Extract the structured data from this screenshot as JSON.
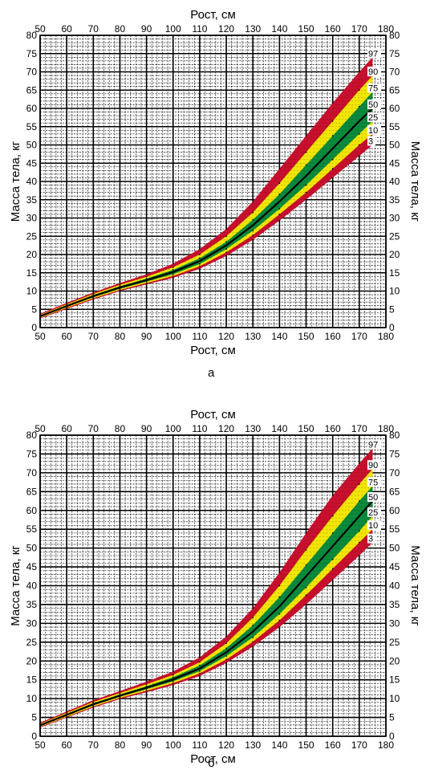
{
  "colors": {
    "outer": "#c8102e",
    "mid": "#f2e600",
    "inner": "#0a8a3c",
    "median": "#000000",
    "grid": "#000000"
  },
  "chart_data": [
    {
      "type": "area",
      "panel_label": "а",
      "xlabel": "Рост, см",
      "ylabel": "Масса тела, кг",
      "xlim": [
        50,
        180
      ],
      "ylim": [
        0,
        80
      ],
      "xticks": [
        50,
        60,
        70,
        80,
        90,
        100,
        110,
        120,
        130,
        140,
        150,
        160,
        170,
        180
      ],
      "yticks": [
        0,
        5,
        10,
        15,
        20,
        25,
        30,
        35,
        40,
        45,
        50,
        55,
        60,
        65,
        70,
        75,
        80
      ],
      "percentile_labels": [
        "97",
        "90",
        "75",
        "50",
        "25",
        "10",
        "3"
      ],
      "x": [
        50,
        60,
        70,
        80,
        90,
        100,
        110,
        120,
        130,
        140,
        150,
        160,
        170,
        175
      ],
      "series": [
        {
          "name": "97",
          "values": [
            3.8,
            6.8,
            9.6,
            12.2,
            14.6,
            17.5,
            21.5,
            27.0,
            34.5,
            43.5,
            52.5,
            61.5,
            70.0,
            74.0
          ]
        },
        {
          "name": "90",
          "values": [
            3.5,
            6.4,
            9.2,
            11.7,
            13.9,
            16.5,
            20.0,
            25.0,
            31.5,
            39.5,
            48.0,
            56.5,
            65.0,
            69.0
          ]
        },
        {
          "name": "75",
          "values": [
            3.3,
            6.1,
            8.9,
            11.3,
            13.4,
            15.8,
            19.0,
            23.5,
            29.5,
            36.5,
            44.5,
            52.5,
            60.5,
            64.5
          ]
        },
        {
          "name": "50",
          "values": [
            3.1,
            5.9,
            8.6,
            11.0,
            13.0,
            15.2,
            18.2,
            22.5,
            28.0,
            34.5,
            41.5,
            49.0,
            56.5,
            60.0
          ]
        },
        {
          "name": "25",
          "values": [
            2.9,
            5.7,
            8.3,
            10.6,
            12.6,
            14.6,
            17.4,
            21.5,
            26.5,
            32.5,
            39.0,
            46.0,
            53.0,
            56.5
          ]
        },
        {
          "name": "10",
          "values": [
            2.7,
            5.4,
            8.0,
            10.3,
            12.2,
            14.1,
            16.8,
            20.6,
            25.3,
            31.0,
            37.0,
            43.5,
            50.0,
            53.0
          ]
        },
        {
          "name": "3",
          "values": [
            2.5,
            5.1,
            7.7,
            10.0,
            11.8,
            13.6,
            16.1,
            19.6,
            24.0,
            29.3,
            35.0,
            41.0,
            47.0,
            50.0
          ]
        }
      ]
    },
    {
      "type": "area",
      "panel_label": "б",
      "xlabel": "Рост, см",
      "ylabel": "Масса тела, кг",
      "xlim": [
        50,
        180
      ],
      "ylim": [
        0,
        80
      ],
      "xticks": [
        50,
        60,
        70,
        80,
        90,
        100,
        110,
        120,
        130,
        140,
        150,
        160,
        170,
        180
      ],
      "yticks": [
        0,
        5,
        10,
        15,
        20,
        25,
        30,
        35,
        40,
        45,
        50,
        55,
        60,
        65,
        70,
        75,
        80
      ],
      "percentile_labels": [
        "97",
        "90",
        "75",
        "50",
        "25",
        "10",
        "3"
      ],
      "x": [
        50,
        60,
        70,
        80,
        90,
        100,
        110,
        120,
        130,
        140,
        150,
        160,
        170,
        175
      ],
      "series": [
        {
          "name": "97",
          "values": [
            3.6,
            6.6,
            9.6,
            12.0,
            14.5,
            17.2,
            21.0,
            26.5,
            34.0,
            43.5,
            54.0,
            64.0,
            72.5,
            76.5
          ]
        },
        {
          "name": "90",
          "values": [
            3.3,
            6.2,
            9.1,
            11.5,
            13.8,
            16.3,
            19.7,
            24.7,
            31.5,
            40.0,
            49.5,
            58.5,
            67.0,
            71.0
          ]
        },
        {
          "name": "75",
          "values": [
            3.1,
            5.9,
            8.8,
            11.1,
            13.3,
            15.7,
            18.8,
            23.4,
            29.5,
            37.0,
            45.5,
            54.0,
            62.5,
            66.5
          ]
        },
        {
          "name": "50",
          "values": [
            2.9,
            5.7,
            8.5,
            10.8,
            12.9,
            15.1,
            18.0,
            22.3,
            27.8,
            34.5,
            42.5,
            50.5,
            58.5,
            62.5
          ]
        },
        {
          "name": "25",
          "values": [
            2.7,
            5.5,
            8.2,
            10.5,
            12.5,
            14.6,
            17.3,
            21.3,
            26.3,
            32.5,
            39.5,
            47.0,
            54.5,
            58.5
          ]
        },
        {
          "name": "10",
          "values": [
            2.5,
            5.2,
            7.9,
            10.2,
            12.1,
            14.1,
            16.7,
            20.4,
            25.1,
            30.8,
            37.5,
            44.5,
            51.5,
            55.0
          ]
        },
        {
          "name": "3",
          "values": [
            2.3,
            5.0,
            7.6,
            9.9,
            11.7,
            13.6,
            16.0,
            19.5,
            23.8,
            29.0,
            35.0,
            41.5,
            48.0,
            51.5
          ]
        }
      ]
    }
  ]
}
